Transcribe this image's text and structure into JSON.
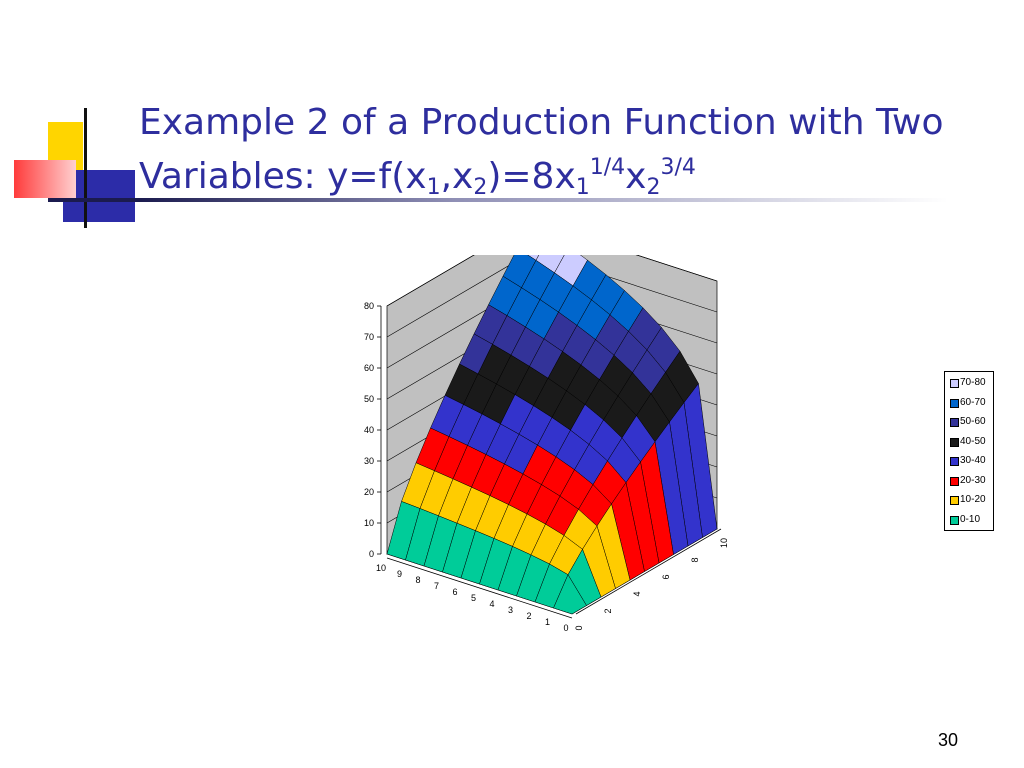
{
  "slide": {
    "title_line1": "Example 2 of a Production Function with Two",
    "title_line2_prefix": "Variables: y=f(x",
    "title_sub1": "1",
    "title_comma": ",x",
    "title_sub2": "2",
    "title_eq": ")=8x",
    "title_sub3": "1",
    "title_sup1": "1/4",
    "title_x": "x",
    "title_sub4": "2",
    "title_sup2": "3/4",
    "page_number": "30"
  },
  "chart_data": {
    "type": "surface",
    "formula": "y=8*x1^(1/4)*x2^(3/4)",
    "x1_ticks": [
      "10",
      "9",
      "8",
      "7",
      "6",
      "5",
      "4",
      "3",
      "2",
      "1",
      "0"
    ],
    "x2_ticks": [
      "0",
      "2",
      "4",
      "6",
      "8",
      "10"
    ],
    "z_ticks": [
      "0",
      "10",
      "20",
      "30",
      "40",
      "50",
      "60",
      "70",
      "80"
    ],
    "zlim": [
      0,
      80
    ],
    "x1_range": [
      0,
      10
    ],
    "x2_range": [
      0,
      10
    ],
    "grid": true,
    "legend_position": "right",
    "legend": [
      {
        "label": "70-80",
        "color": "#ccccff"
      },
      {
        "label": "60-70",
        "color": "#0066cc"
      },
      {
        "label": "50-60",
        "color": "#333399"
      },
      {
        "label": "40-50",
        "color": "#1a1a1a"
      },
      {
        "label": "30-40",
        "color": "#3333cc"
      },
      {
        "label": "20-30",
        "color": "#ff0000"
      },
      {
        "label": "10-20",
        "color": "#ffcc00"
      },
      {
        "label": "0-10",
        "color": "#00cc99"
      }
    ]
  }
}
